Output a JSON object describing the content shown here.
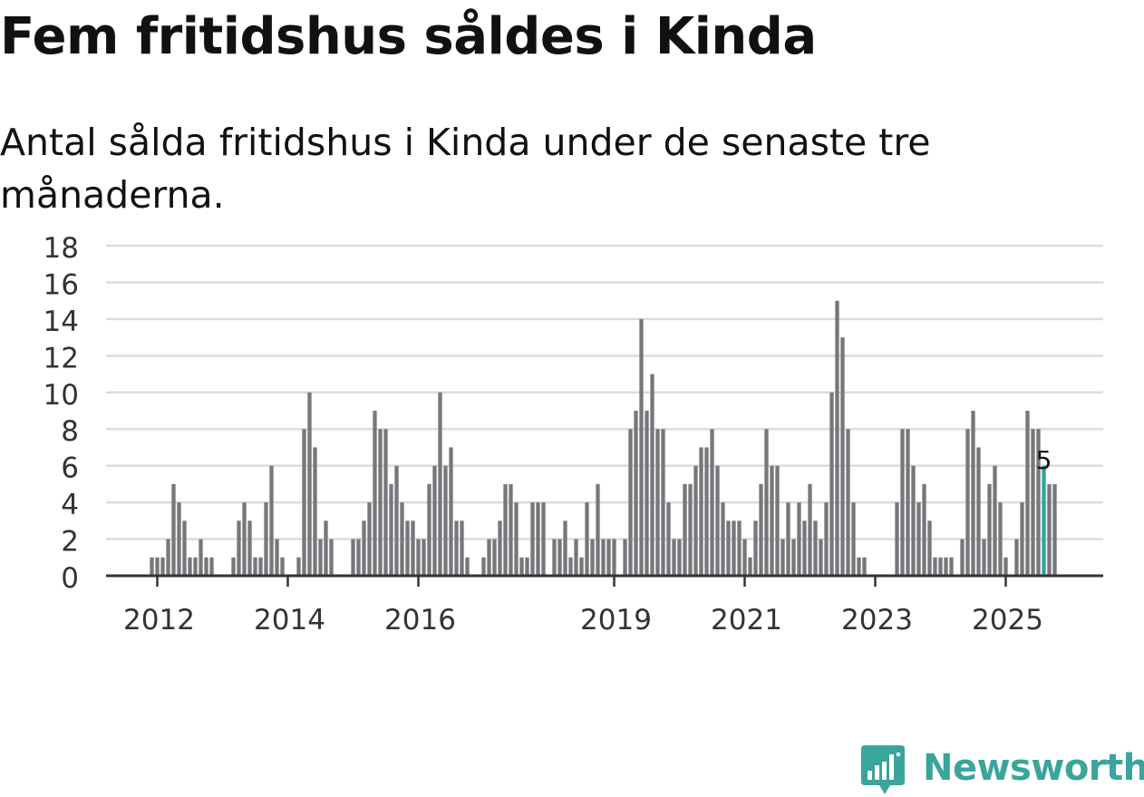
{
  "header": {
    "title": "Fem fritidshus såldes i Kinda",
    "subtitle": "Antal sålda fritidshus i Kinda under de senaste tre månaderna."
  },
  "brand": {
    "name": "Newsworthy",
    "color": "#3aa59b"
  },
  "chart_data": {
    "type": "bar",
    "title": "Fem fritidshus såldes i Kinda",
    "subtitle": "Antal sålda fritidshus i Kinda under de senaste tre månaderna.",
    "xlabel": "",
    "ylabel": "",
    "ylim": [
      0,
      18
    ],
    "yticks": [
      0,
      2,
      4,
      6,
      8,
      10,
      12,
      14,
      16,
      18
    ],
    "grid": true,
    "bar_color": "#77767b",
    "highlight_color": "#2aa79b",
    "first_bar_month": "2011-12",
    "x_tick_labels": [
      {
        "label": "2012",
        "month": "2012-01"
      },
      {
        "label": "2014",
        "month": "2014-01"
      },
      {
        "label": "2016",
        "month": "2016-01"
      },
      {
        "label": "2019",
        "month": "2019-01"
      },
      {
        "label": "2021",
        "month": "2021-01"
      },
      {
        "label": "2023",
        "month": "2023-01"
      },
      {
        "label": "2025",
        "month": "2025-01"
      }
    ],
    "values": [
      1,
      1,
      1,
      2,
      5,
      4,
      3,
      1,
      1,
      2,
      1,
      1,
      null,
      null,
      null,
      1,
      3,
      4,
      3,
      1,
      1,
      4,
      6,
      2,
      1,
      null,
      null,
      1,
      8,
      10,
      7,
      2,
      3,
      2,
      null,
      null,
      null,
      2,
      2,
      3,
      4,
      9,
      8,
      8,
      5,
      6,
      4,
      3,
      3,
      2,
      2,
      5,
      6,
      10,
      6,
      7,
      3,
      3,
      1,
      null,
      null,
      1,
      2,
      2,
      3,
      5,
      5,
      4,
      1,
      1,
      4,
      4,
      4,
      null,
      2,
      2,
      3,
      1,
      2,
      1,
      4,
      2,
      5,
      2,
      2,
      2,
      null,
      2,
      8,
      9,
      14,
      9,
      11,
      8,
      8,
      4,
      2,
      2,
      5,
      5,
      6,
      7,
      7,
      8,
      6,
      4,
      3,
      3,
      3,
      2,
      1,
      3,
      5,
      8,
      6,
      6,
      2,
      4,
      2,
      4,
      3,
      5,
      3,
      2,
      4,
      10,
      15,
      13,
      8,
      4,
      1,
      1,
      null,
      null,
      null,
      null,
      null,
      4,
      8,
      8,
      6,
      4,
      5,
      3,
      1,
      1,
      1,
      1,
      null,
      2,
      8,
      9,
      7,
      2,
      5,
      6,
      4,
      1,
      null,
      2,
      4,
      9,
      8,
      8,
      6,
      5,
      5
    ],
    "highlight": {
      "month": "2025-08",
      "value": 5,
      "label": "5"
    }
  }
}
